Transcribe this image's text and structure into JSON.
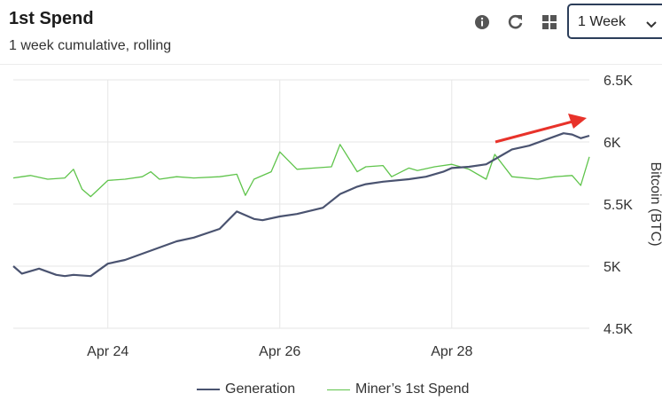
{
  "header": {
    "title": "1st Spend",
    "subtitle": "1 week cumulative, rolling",
    "icons": [
      "info-icon",
      "refresh-icon",
      "grid-icon"
    ]
  },
  "range_select": {
    "value": "1 Week"
  },
  "colors": {
    "generation": "#4a5370",
    "miner_spend": "#5fc44b",
    "arrow": "#e8322a",
    "grid": "#e6e6e6"
  },
  "legend": {
    "generation": "Generation",
    "miner_spend": "Miner’s 1st Spend"
  },
  "chart_data": {
    "type": "line",
    "xlabel": "",
    "ylabel": "Bitcoin (BTC)",
    "x_ticks": [
      "Apr 24",
      "Apr 26",
      "Apr 28"
    ],
    "y_ticks": [
      "4.5K",
      "5K",
      "5.5K",
      "6K",
      "6.5K"
    ],
    "ylim": [
      4500,
      6500
    ],
    "grid": true,
    "legend_position": "bottom",
    "series": [
      {
        "name": "Generation",
        "x": [
          22.9,
          23.0,
          23.2,
          23.4,
          23.5,
          23.6,
          23.8,
          24.0,
          24.2,
          24.4,
          24.6,
          24.8,
          25.0,
          25.3,
          25.5,
          25.7,
          25.8,
          26.0,
          26.2,
          26.5,
          26.7,
          26.9,
          27.0,
          27.2,
          27.5,
          27.7,
          27.9,
          28.0,
          28.2,
          28.4,
          28.6,
          28.7,
          28.9,
          29.1,
          29.3,
          29.4,
          29.5,
          29.6
        ],
        "values": [
          5000,
          4940,
          4980,
          4930,
          4920,
          4930,
          4920,
          5020,
          5050,
          5100,
          5150,
          5200,
          5230,
          5300,
          5440,
          5380,
          5370,
          5400,
          5420,
          5470,
          5580,
          5640,
          5660,
          5680,
          5700,
          5720,
          5760,
          5790,
          5800,
          5820,
          5900,
          5940,
          5970,
          6020,
          6070,
          6060,
          6030,
          6050
        ]
      },
      {
        "name": "Miner’s 1st Spend",
        "x": [
          22.9,
          23.0,
          23.1,
          23.3,
          23.5,
          23.6,
          23.7,
          23.8,
          24.0,
          24.2,
          24.4,
          24.5,
          24.6,
          24.8,
          25.0,
          25.3,
          25.5,
          25.6,
          25.7,
          25.9,
          26.0,
          26.2,
          26.4,
          26.6,
          26.7,
          26.9,
          27.0,
          27.2,
          27.3,
          27.5,
          27.6,
          27.8,
          28.0,
          28.2,
          28.4,
          28.5,
          28.7,
          29.0,
          29.2,
          29.4,
          29.5,
          29.6
        ],
        "values": [
          5710,
          5720,
          5730,
          5700,
          5710,
          5780,
          5620,
          5560,
          5690,
          5700,
          5720,
          5760,
          5700,
          5720,
          5710,
          5720,
          5740,
          5570,
          5700,
          5760,
          5920,
          5780,
          5790,
          5800,
          5980,
          5760,
          5800,
          5810,
          5720,
          5790,
          5770,
          5800,
          5820,
          5780,
          5700,
          5900,
          5720,
          5700,
          5720,
          5730,
          5650,
          5880
        ]
      }
    ],
    "annotations": [
      "red arrow pointing to latest Generation value"
    ]
  }
}
